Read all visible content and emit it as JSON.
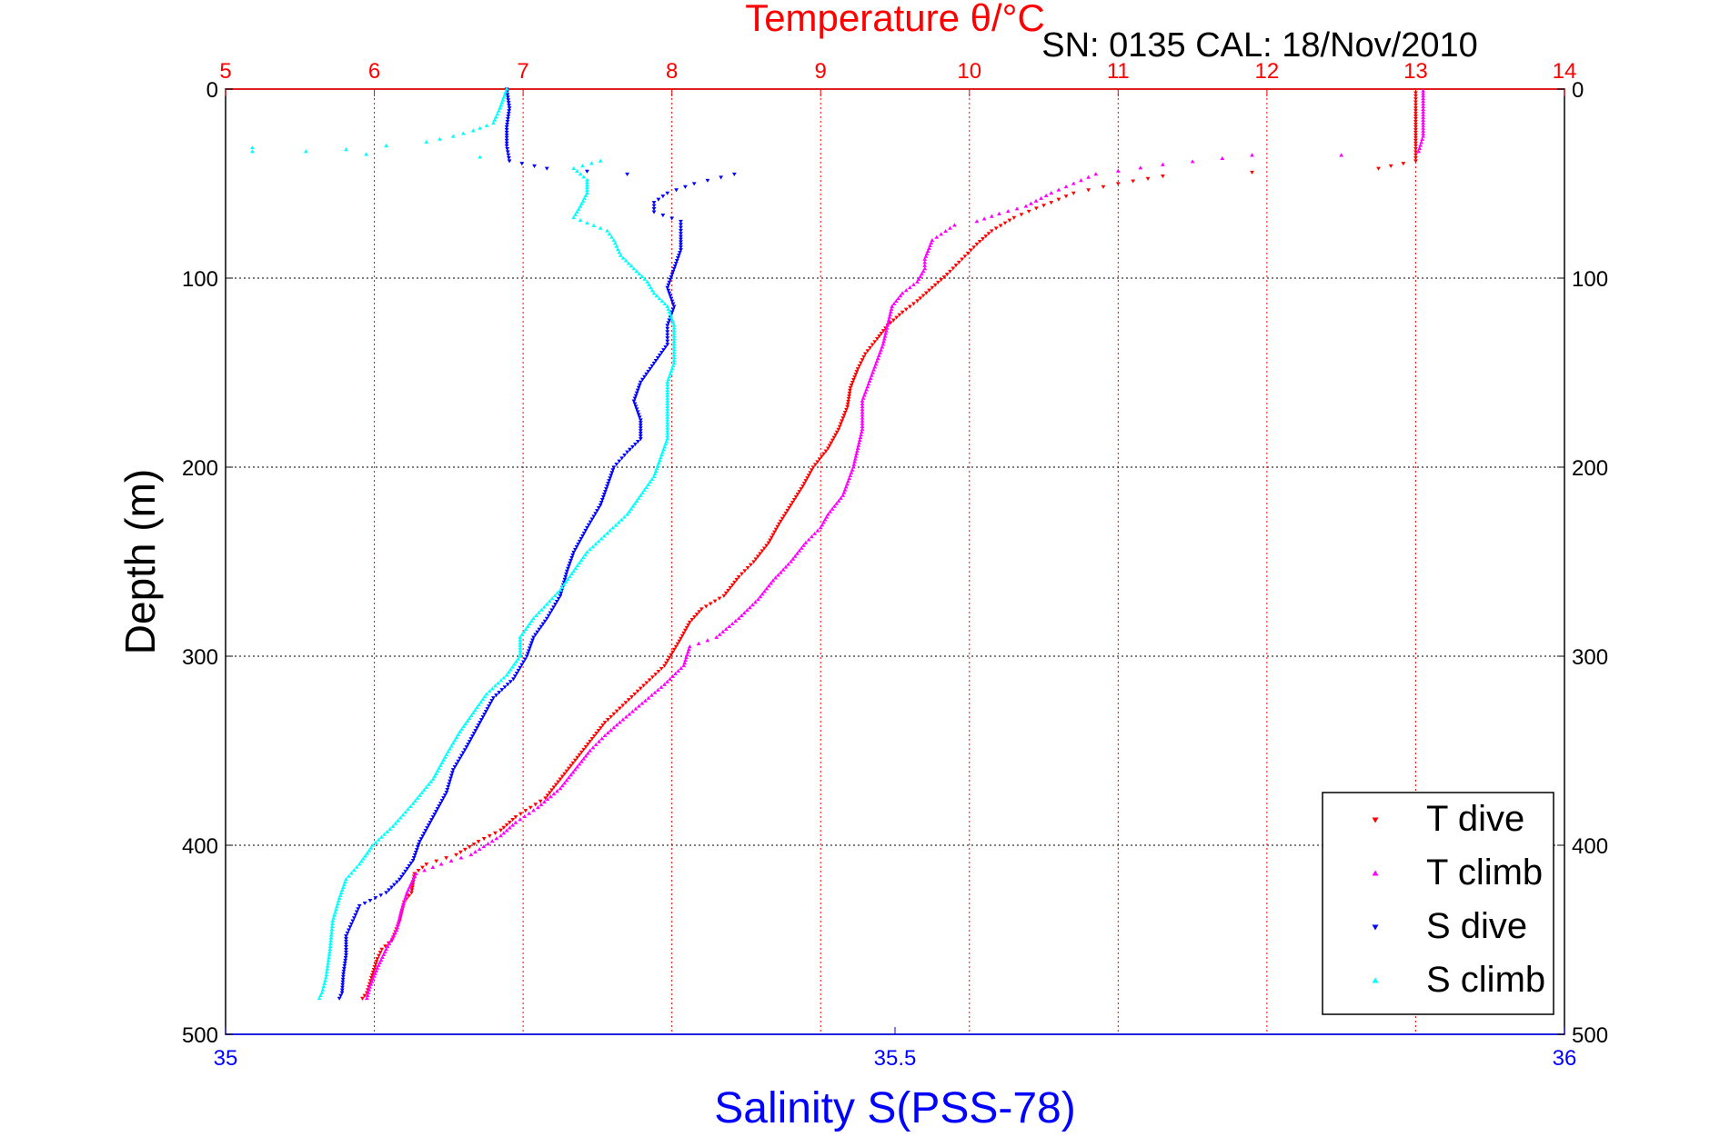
{
  "chart_data": {
    "type": "scatter",
    "title": "Temperature θ/°C",
    "subtitle": "SN: 0135  CAL: 18/Nov/2010",
    "ylabel": "Depth (m)",
    "xlabel_bottom": "Salinity S(PSS-78)",
    "xlim_top": [
      5,
      14
    ],
    "xlim_bottom": [
      35,
      36
    ],
    "ylim": [
      0,
      500
    ],
    "y_inverted": true,
    "top_ticks": [
      "5",
      "6",
      "7",
      "8",
      "9",
      "10",
      "11",
      "12",
      "13",
      "14"
    ],
    "bottom_ticks": [
      "35",
      "35.5",
      "36"
    ],
    "y_ticks": [
      "0",
      "100",
      "200",
      "300",
      "400",
      "500"
    ],
    "grid": true,
    "legend_position": "bottom-right",
    "colors": {
      "top_axis": "#ff0000",
      "bottom_axis": "#0000ff",
      "text": "#000000"
    },
    "series": [
      {
        "name": "T dive",
        "axis": "top",
        "color": "#ff0000",
        "marker": "triangle-down",
        "points": [
          [
            13.0,
            2
          ],
          [
            13.0,
            10
          ],
          [
            13.0,
            20
          ],
          [
            13.0,
            30
          ],
          [
            13.0,
            38
          ],
          [
            12.75,
            42
          ],
          [
            11.9,
            44
          ],
          [
            11.3,
            46
          ],
          [
            11.0,
            50
          ],
          [
            10.7,
            55
          ],
          [
            10.55,
            60
          ],
          [
            10.45,
            63
          ],
          [
            10.3,
            68
          ],
          [
            10.15,
            75
          ],
          [
            10.05,
            82
          ],
          [
            9.95,
            90
          ],
          [
            9.85,
            98
          ],
          [
            9.75,
            105
          ],
          [
            9.65,
            112
          ],
          [
            9.55,
            118
          ],
          [
            9.45,
            125
          ],
          [
            9.38,
            132
          ],
          [
            9.3,
            140
          ],
          [
            9.25,
            148
          ],
          [
            9.2,
            158
          ],
          [
            9.18,
            168
          ],
          [
            9.12,
            180
          ],
          [
            9.05,
            190
          ],
          [
            8.95,
            200
          ],
          [
            8.88,
            210
          ],
          [
            8.8,
            220
          ],
          [
            8.72,
            230
          ],
          [
            8.65,
            240
          ],
          [
            8.55,
            250
          ],
          [
            8.45,
            258
          ],
          [
            8.35,
            268
          ],
          [
            8.2,
            275
          ],
          [
            8.12,
            282
          ],
          [
            8.05,
            292
          ],
          [
            7.95,
            305
          ],
          [
            7.75,
            320
          ],
          [
            7.55,
            335
          ],
          [
            7.45,
            345
          ],
          [
            7.35,
            355
          ],
          [
            7.25,
            365
          ],
          [
            7.15,
            375
          ],
          [
            7.05,
            380
          ],
          [
            6.95,
            385
          ],
          [
            6.85,
            392
          ],
          [
            6.7,
            398
          ],
          [
            6.55,
            405
          ],
          [
            6.35,
            410
          ],
          [
            6.27,
            415
          ],
          [
            6.25,
            425
          ],
          [
            6.2,
            430
          ],
          [
            6.17,
            440
          ],
          [
            6.12,
            450
          ],
          [
            6.05,
            455
          ],
          [
            6.02,
            460
          ],
          [
            5.98,
            470
          ],
          [
            5.95,
            478
          ],
          [
            5.92,
            481
          ]
        ]
      },
      {
        "name": "T climb",
        "axis": "top",
        "color": "#ff00ff",
        "marker": "triangle-up",
        "points": [
          [
            13.05,
            1
          ],
          [
            13.05,
            5
          ],
          [
            13.05,
            15
          ],
          [
            13.05,
            25
          ],
          [
            13.02,
            33
          ],
          [
            12.5,
            35
          ],
          [
            11.9,
            35
          ],
          [
            11.3,
            40
          ],
          [
            10.85,
            45
          ],
          [
            10.7,
            50
          ],
          [
            10.55,
            55
          ],
          [
            10.38,
            62
          ],
          [
            10.2,
            66
          ],
          [
            10.05,
            70
          ],
          [
            9.9,
            72
          ],
          [
            9.75,
            80
          ],
          [
            9.7,
            90
          ],
          [
            9.7,
            95
          ],
          [
            9.65,
            102
          ],
          [
            9.55,
            108
          ],
          [
            9.48,
            115
          ],
          [
            9.45,
            125
          ],
          [
            9.42,
            135
          ],
          [
            9.35,
            150
          ],
          [
            9.28,
            165
          ],
          [
            9.28,
            180
          ],
          [
            9.25,
            190
          ],
          [
            9.22,
            200
          ],
          [
            9.15,
            215
          ],
          [
            9.05,
            225
          ],
          [
            9.0,
            232
          ],
          [
            8.9,
            240
          ],
          [
            8.8,
            250
          ],
          [
            8.68,
            260
          ],
          [
            8.58,
            270
          ],
          [
            8.45,
            280
          ],
          [
            8.3,
            290
          ],
          [
            8.12,
            295
          ],
          [
            8.08,
            305
          ],
          [
            7.95,
            315
          ],
          [
            7.8,
            325
          ],
          [
            7.65,
            335
          ],
          [
            7.55,
            342
          ],
          [
            7.45,
            350
          ],
          [
            7.35,
            360
          ],
          [
            7.25,
            370
          ],
          [
            7.1,
            380
          ],
          [
            6.95,
            388
          ],
          [
            6.85,
            395
          ],
          [
            6.65,
            405
          ],
          [
            6.45,
            410
          ],
          [
            6.28,
            415
          ],
          [
            6.22,
            425
          ],
          [
            6.18,
            435
          ],
          [
            6.15,
            445
          ],
          [
            6.08,
            455
          ],
          [
            6.02,
            465
          ],
          [
            5.97,
            475
          ],
          [
            5.95,
            481
          ]
        ]
      },
      {
        "name": "S dive",
        "axis": "bottom",
        "color": "#0000ff",
        "marker": "triangle-down",
        "points": [
          [
            35.21,
            0
          ],
          [
            35.212,
            10
          ],
          [
            35.21,
            20
          ],
          [
            35.21,
            30
          ],
          [
            35.212,
            38
          ],
          [
            35.24,
            42
          ],
          [
            35.3,
            45
          ],
          [
            35.38,
            45
          ],
          [
            35.35,
            50
          ],
          [
            35.33,
            55
          ],
          [
            35.32,
            60
          ],
          [
            35.32,
            65
          ],
          [
            35.34,
            70
          ],
          [
            35.34,
            78
          ],
          [
            35.34,
            85
          ],
          [
            35.335,
            95
          ],
          [
            35.33,
            105
          ],
          [
            35.335,
            115
          ],
          [
            35.33,
            125
          ],
          [
            35.33,
            130
          ],
          [
            35.33,
            135
          ],
          [
            35.32,
            145
          ],
          [
            35.31,
            155
          ],
          [
            35.305,
            165
          ],
          [
            35.31,
            175
          ],
          [
            35.31,
            185
          ],
          [
            35.3,
            192
          ],
          [
            35.29,
            200
          ],
          [
            35.285,
            210
          ],
          [
            35.28,
            220
          ],
          [
            35.27,
            232
          ],
          [
            35.26,
            245
          ],
          [
            35.255,
            255
          ],
          [
            35.25,
            268
          ],
          [
            35.24,
            280
          ],
          [
            35.23,
            290
          ],
          [
            35.225,
            300
          ],
          [
            35.215,
            312
          ],
          [
            35.2,
            322
          ],
          [
            35.19,
            335
          ],
          [
            35.18,
            348
          ],
          [
            35.17,
            360
          ],
          [
            35.165,
            372
          ],
          [
            35.155,
            385
          ],
          [
            35.145,
            398
          ],
          [
            35.14,
            408
          ],
          [
            35.13,
            418
          ],
          [
            35.12,
            425
          ],
          [
            35.1,
            432
          ],
          [
            35.095,
            440
          ],
          [
            35.09,
            448
          ],
          [
            35.09,
            458
          ],
          [
            35.088,
            468
          ],
          [
            35.087,
            478
          ],
          [
            35.085,
            481
          ]
        ]
      },
      {
        "name": "S climb",
        "axis": "bottom",
        "color": "#00ffff",
        "marker": "triangle-up",
        "points": [
          [
            35.21,
            0
          ],
          [
            35.205,
            10
          ],
          [
            35.2,
            18
          ],
          [
            35.185,
            22
          ],
          [
            35.17,
            25
          ],
          [
            35.15,
            28
          ],
          [
            35.12,
            30
          ],
          [
            35.09,
            32
          ],
          [
            35.06,
            33
          ],
          [
            35.02,
            31
          ],
          [
            35.02,
            33
          ],
          [
            35.19,
            36
          ],
          [
            35.28,
            38
          ],
          [
            35.26,
            42
          ],
          [
            35.27,
            48
          ],
          [
            35.27,
            55
          ],
          [
            35.265,
            62
          ],
          [
            35.26,
            68
          ],
          [
            35.285,
            75
          ],
          [
            35.29,
            80
          ],
          [
            35.295,
            88
          ],
          [
            35.305,
            95
          ],
          [
            35.315,
            102
          ],
          [
            35.32,
            108
          ],
          [
            35.33,
            115
          ],
          [
            35.335,
            125
          ],
          [
            35.335,
            135
          ],
          [
            35.335,
            145
          ],
          [
            35.33,
            155
          ],
          [
            35.33,
            165
          ],
          [
            35.33,
            175
          ],
          [
            35.33,
            185
          ],
          [
            35.325,
            195
          ],
          [
            35.32,
            205
          ],
          [
            35.31,
            215
          ],
          [
            35.3,
            225
          ],
          [
            35.285,
            235
          ],
          [
            35.27,
            245
          ],
          [
            35.26,
            255
          ],
          [
            35.25,
            265
          ],
          [
            35.23,
            280
          ],
          [
            35.22,
            290
          ],
          [
            35.22,
            300
          ],
          [
            35.21,
            310
          ],
          [
            35.195,
            320
          ],
          [
            35.185,
            330
          ],
          [
            35.175,
            340
          ],
          [
            35.165,
            352
          ],
          [
            35.155,
            365
          ],
          [
            35.14,
            378
          ],
          [
            35.125,
            390
          ],
          [
            35.11,
            400
          ],
          [
            35.1,
            410
          ],
          [
            35.09,
            418
          ],
          [
            35.085,
            428
          ],
          [
            35.08,
            440
          ],
          [
            35.078,
            455
          ],
          [
            35.075,
            470
          ],
          [
            35.072,
            478
          ],
          [
            35.07,
            481
          ]
        ]
      }
    ]
  }
}
